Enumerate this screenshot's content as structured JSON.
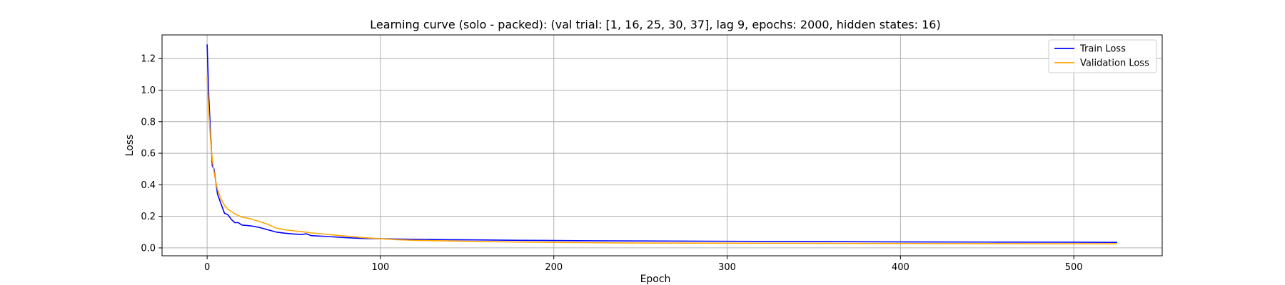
{
  "chart_data": {
    "type": "line",
    "title": "Learning curve (solo - packed): (val trial: [1, 16, 25, 30, 37], lag 9, epochs: 2000, hidden states: 16)",
    "xlabel": "Epoch",
    "ylabel": "Loss",
    "xlim": [
      -26,
      551
    ],
    "ylim": [
      -0.05,
      1.35
    ],
    "xticks": [
      0,
      100,
      200,
      300,
      400,
      500
    ],
    "yticks": [
      0.0,
      0.2,
      0.4,
      0.6,
      0.8,
      1.0,
      1.2
    ],
    "grid": true,
    "legend_position": "top-right",
    "series": [
      {
        "name": "Train Loss",
        "color": "#0000ff",
        "points": [
          [
            0,
            1.29
          ],
          [
            1,
            0.95
          ],
          [
            2,
            0.72
          ],
          [
            3,
            0.52
          ],
          [
            4,
            0.5
          ],
          [
            5,
            0.42
          ],
          [
            6,
            0.34
          ],
          [
            8,
            0.28
          ],
          [
            10,
            0.22
          ],
          [
            12,
            0.21
          ],
          [
            14,
            0.18
          ],
          [
            16,
            0.16
          ],
          [
            18,
            0.16
          ],
          [
            20,
            0.145
          ],
          [
            25,
            0.14
          ],
          [
            30,
            0.13
          ],
          [
            35,
            0.115
          ],
          [
            40,
            0.1
          ],
          [
            45,
            0.093
          ],
          [
            50,
            0.088
          ],
          [
            55,
            0.085
          ],
          [
            57,
            0.09
          ],
          [
            60,
            0.078
          ],
          [
            70,
            0.072
          ],
          [
            80,
            0.065
          ],
          [
            90,
            0.06
          ],
          [
            100,
            0.058
          ],
          [
            110,
            0.056
          ],
          [
            120,
            0.054
          ],
          [
            140,
            0.052
          ],
          [
            160,
            0.05
          ],
          [
            180,
            0.048
          ],
          [
            200,
            0.047
          ],
          [
            220,
            0.045
          ],
          [
            250,
            0.044
          ],
          [
            300,
            0.042
          ],
          [
            350,
            0.04
          ],
          [
            400,
            0.038
          ],
          [
            450,
            0.037
          ],
          [
            500,
            0.036
          ],
          [
            525,
            0.035
          ]
        ]
      },
      {
        "name": "Validation Loss",
        "color": "#ffa500",
        "points": [
          [
            0,
            1.09
          ],
          [
            1,
            0.85
          ],
          [
            2,
            0.68
          ],
          [
            3,
            0.56
          ],
          [
            4,
            0.48
          ],
          [
            5,
            0.42
          ],
          [
            6,
            0.37
          ],
          [
            8,
            0.31
          ],
          [
            10,
            0.27
          ],
          [
            12,
            0.245
          ],
          [
            14,
            0.23
          ],
          [
            16,
            0.215
          ],
          [
            18,
            0.205
          ],
          [
            20,
            0.195
          ],
          [
            25,
            0.185
          ],
          [
            30,
            0.168
          ],
          [
            35,
            0.15
          ],
          [
            40,
            0.125
          ],
          [
            45,
            0.115
          ],
          [
            50,
            0.108
          ],
          [
            55,
            0.102
          ],
          [
            57,
            0.1
          ],
          [
            60,
            0.095
          ],
          [
            70,
            0.085
          ],
          [
            80,
            0.075
          ],
          [
            90,
            0.065
          ],
          [
            100,
            0.058
          ],
          [
            110,
            0.052
          ],
          [
            120,
            0.048
          ],
          [
            140,
            0.044
          ],
          [
            160,
            0.04
          ],
          [
            180,
            0.037
          ],
          [
            200,
            0.035
          ],
          [
            220,
            0.033
          ],
          [
            250,
            0.031
          ],
          [
            300,
            0.03
          ],
          [
            350,
            0.029
          ],
          [
            400,
            0.028
          ],
          [
            450,
            0.027
          ],
          [
            500,
            0.026
          ],
          [
            525,
            0.026
          ]
        ]
      }
    ]
  }
}
